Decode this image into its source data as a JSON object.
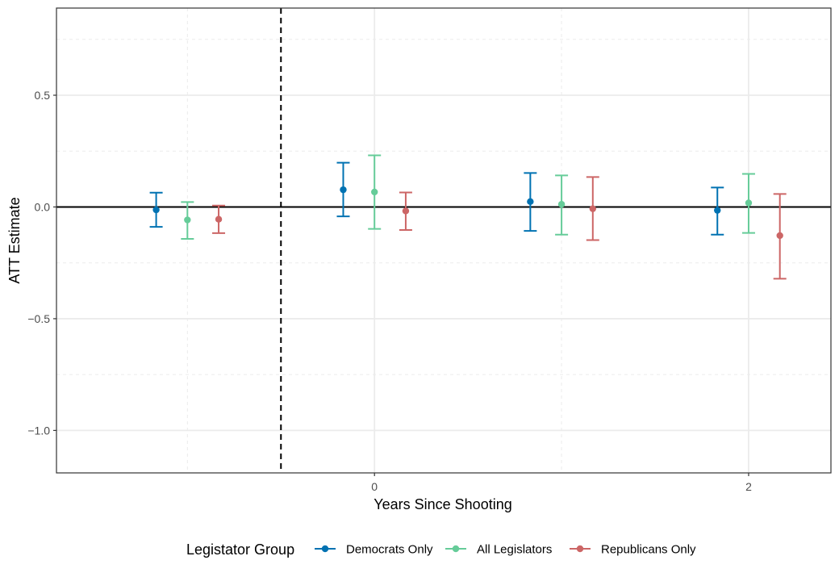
{
  "chart_data": {
    "type": "scatter",
    "subtype": "point-range (coefficient plot with error bars)",
    "xlabel": "Years Since Shooting",
    "ylabel": "ATT Estimate",
    "x_ticks": [
      0,
      2
    ],
    "y_ticks": [
      0.5,
      0.0,
      -0.5,
      -1.0
    ],
    "y_tick_labels": [
      "0.5",
      "0.0",
      "−0.5",
      "−1.0"
    ],
    "xlim": [
      -1.7,
      2.44
    ],
    "ylim": [
      -1.19,
      0.89
    ],
    "reference_lines": {
      "horizontal_solid_at_y": 0,
      "vertical_dashed_at_x": -0.5
    },
    "grid": "major and dashed minor gridlines",
    "legend": {
      "title": "Legistator Group",
      "position": "bottom"
    },
    "x": [
      -1,
      0,
      1,
      2
    ],
    "series": [
      {
        "name": "Democrats Only",
        "color": "#0072B2",
        "x_offset": -0.167,
        "estimate": [
          -0.013,
          0.077,
          0.024,
          -0.015
        ],
        "lower": [
          -0.089,
          -0.042,
          -0.107,
          -0.124
        ],
        "upper": [
          0.064,
          0.198,
          0.152,
          0.087
        ]
      },
      {
        "name": "All Legislators",
        "color": "#66CC99",
        "x_offset": 0,
        "estimate": [
          -0.058,
          0.067,
          0.012,
          0.018
        ],
        "lower": [
          -0.143,
          -0.098,
          -0.124,
          -0.116
        ],
        "upper": [
          0.022,
          0.231,
          0.141,
          0.148
        ]
      },
      {
        "name": "Republicans Only",
        "color": "#CC6666",
        "x_offset": 0.167,
        "estimate": [
          -0.055,
          -0.018,
          -0.008,
          -0.128
        ],
        "lower": [
          -0.117,
          -0.103,
          -0.148,
          -0.321
        ],
        "upper": [
          0.006,
          0.065,
          0.134,
          0.058
        ]
      }
    ]
  }
}
